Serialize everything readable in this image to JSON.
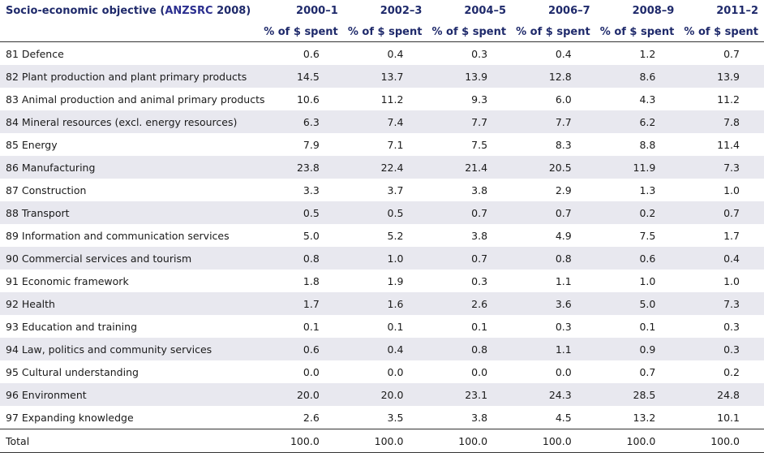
{
  "table": {
    "header": {
      "first_col_prefix": "Socio-economic objective (",
      "first_col_accent": "ANZSRC",
      "first_col_suffix": " 2008)",
      "periods": [
        "2000–1",
        "2002–3",
        "2004–5",
        "2006–7",
        "2008–9",
        "2011–2"
      ],
      "units": [
        "% of $ spent",
        "% of $ spent",
        "% of $ spent",
        "% of $ spent",
        "% of $ spent",
        "% of $ spent"
      ]
    },
    "rows": [
      {
        "label": "81 Defence",
        "values": [
          "0.6",
          "0.4",
          "0.3",
          "0.4",
          "1.2",
          "0.7"
        ]
      },
      {
        "label": "82 Plant production and plant primary products",
        "values": [
          "14.5",
          "13.7",
          "13.9",
          "12.8",
          "8.6",
          "13.9"
        ]
      },
      {
        "label": "83 Animal production and animal primary products",
        "values": [
          "10.6",
          "11.2",
          "9.3",
          "6.0",
          "4.3",
          "11.2"
        ]
      },
      {
        "label": "84 Mineral resources (excl. energy resources)",
        "values": [
          "6.3",
          "7.4",
          "7.7",
          "7.7",
          "6.2",
          "7.8"
        ]
      },
      {
        "label": "85 Energy",
        "values": [
          "7.9",
          "7.1",
          "7.5",
          "8.3",
          "8.8",
          "11.4"
        ]
      },
      {
        "label": "86 Manufacturing",
        "values": [
          "23.8",
          "22.4",
          "21.4",
          "20.5",
          "11.9",
          "7.3"
        ]
      },
      {
        "label": "87 Construction",
        "values": [
          "3.3",
          "3.7",
          "3.8",
          "2.9",
          "1.3",
          "1.0"
        ]
      },
      {
        "label": "88 Transport",
        "values": [
          "0.5",
          "0.5",
          "0.7",
          "0.7",
          "0.2",
          "0.7"
        ]
      },
      {
        "label": "89 Information and communication services",
        "values": [
          "5.0",
          "5.2",
          "3.8",
          "4.9",
          "7.5",
          "1.7"
        ]
      },
      {
        "label": "90 Commercial services and tourism",
        "values": [
          "0.8",
          "1.0",
          "0.7",
          "0.8",
          "0.6",
          "0.4"
        ]
      },
      {
        "label": "91 Economic framework",
        "values": [
          "1.8",
          "1.9",
          "0.3",
          "1.1",
          "1.0",
          "1.0"
        ]
      },
      {
        "label": "92 Health",
        "values": [
          "1.7",
          "1.6",
          "2.6",
          "3.6",
          "5.0",
          "7.3"
        ]
      },
      {
        "label": "93 Education and training",
        "values": [
          "0.1",
          "0.1",
          "0.1",
          "0.3",
          "0.1",
          "0.3"
        ]
      },
      {
        "label": "94 Law, politics and community services",
        "values": [
          "0.6",
          "0.4",
          "0.8",
          "1.1",
          "0.9",
          "0.3"
        ]
      },
      {
        "label": "95 Cultural understanding",
        "values": [
          "0.0",
          "0.0",
          "0.0",
          "0.0",
          "0.7",
          "0.2"
        ]
      },
      {
        "label": "96 Environment",
        "values": [
          "20.0",
          "20.0",
          "23.1",
          "24.3",
          "28.5",
          "24.8"
        ]
      },
      {
        "label": "97 Expanding knowledge",
        "values": [
          "2.6",
          "3.5",
          "3.8",
          "4.5",
          "13.2",
          "10.1"
        ]
      }
    ],
    "total": {
      "label": "Total",
      "values": [
        "100.0",
        "100.0",
        "100.0",
        "100.0",
        "100.0",
        "100.0"
      ]
    }
  },
  "colors": {
    "header_text": "#1f2a6b",
    "accent": "#2b2f8f",
    "row_shade": "#e8e8ef"
  }
}
